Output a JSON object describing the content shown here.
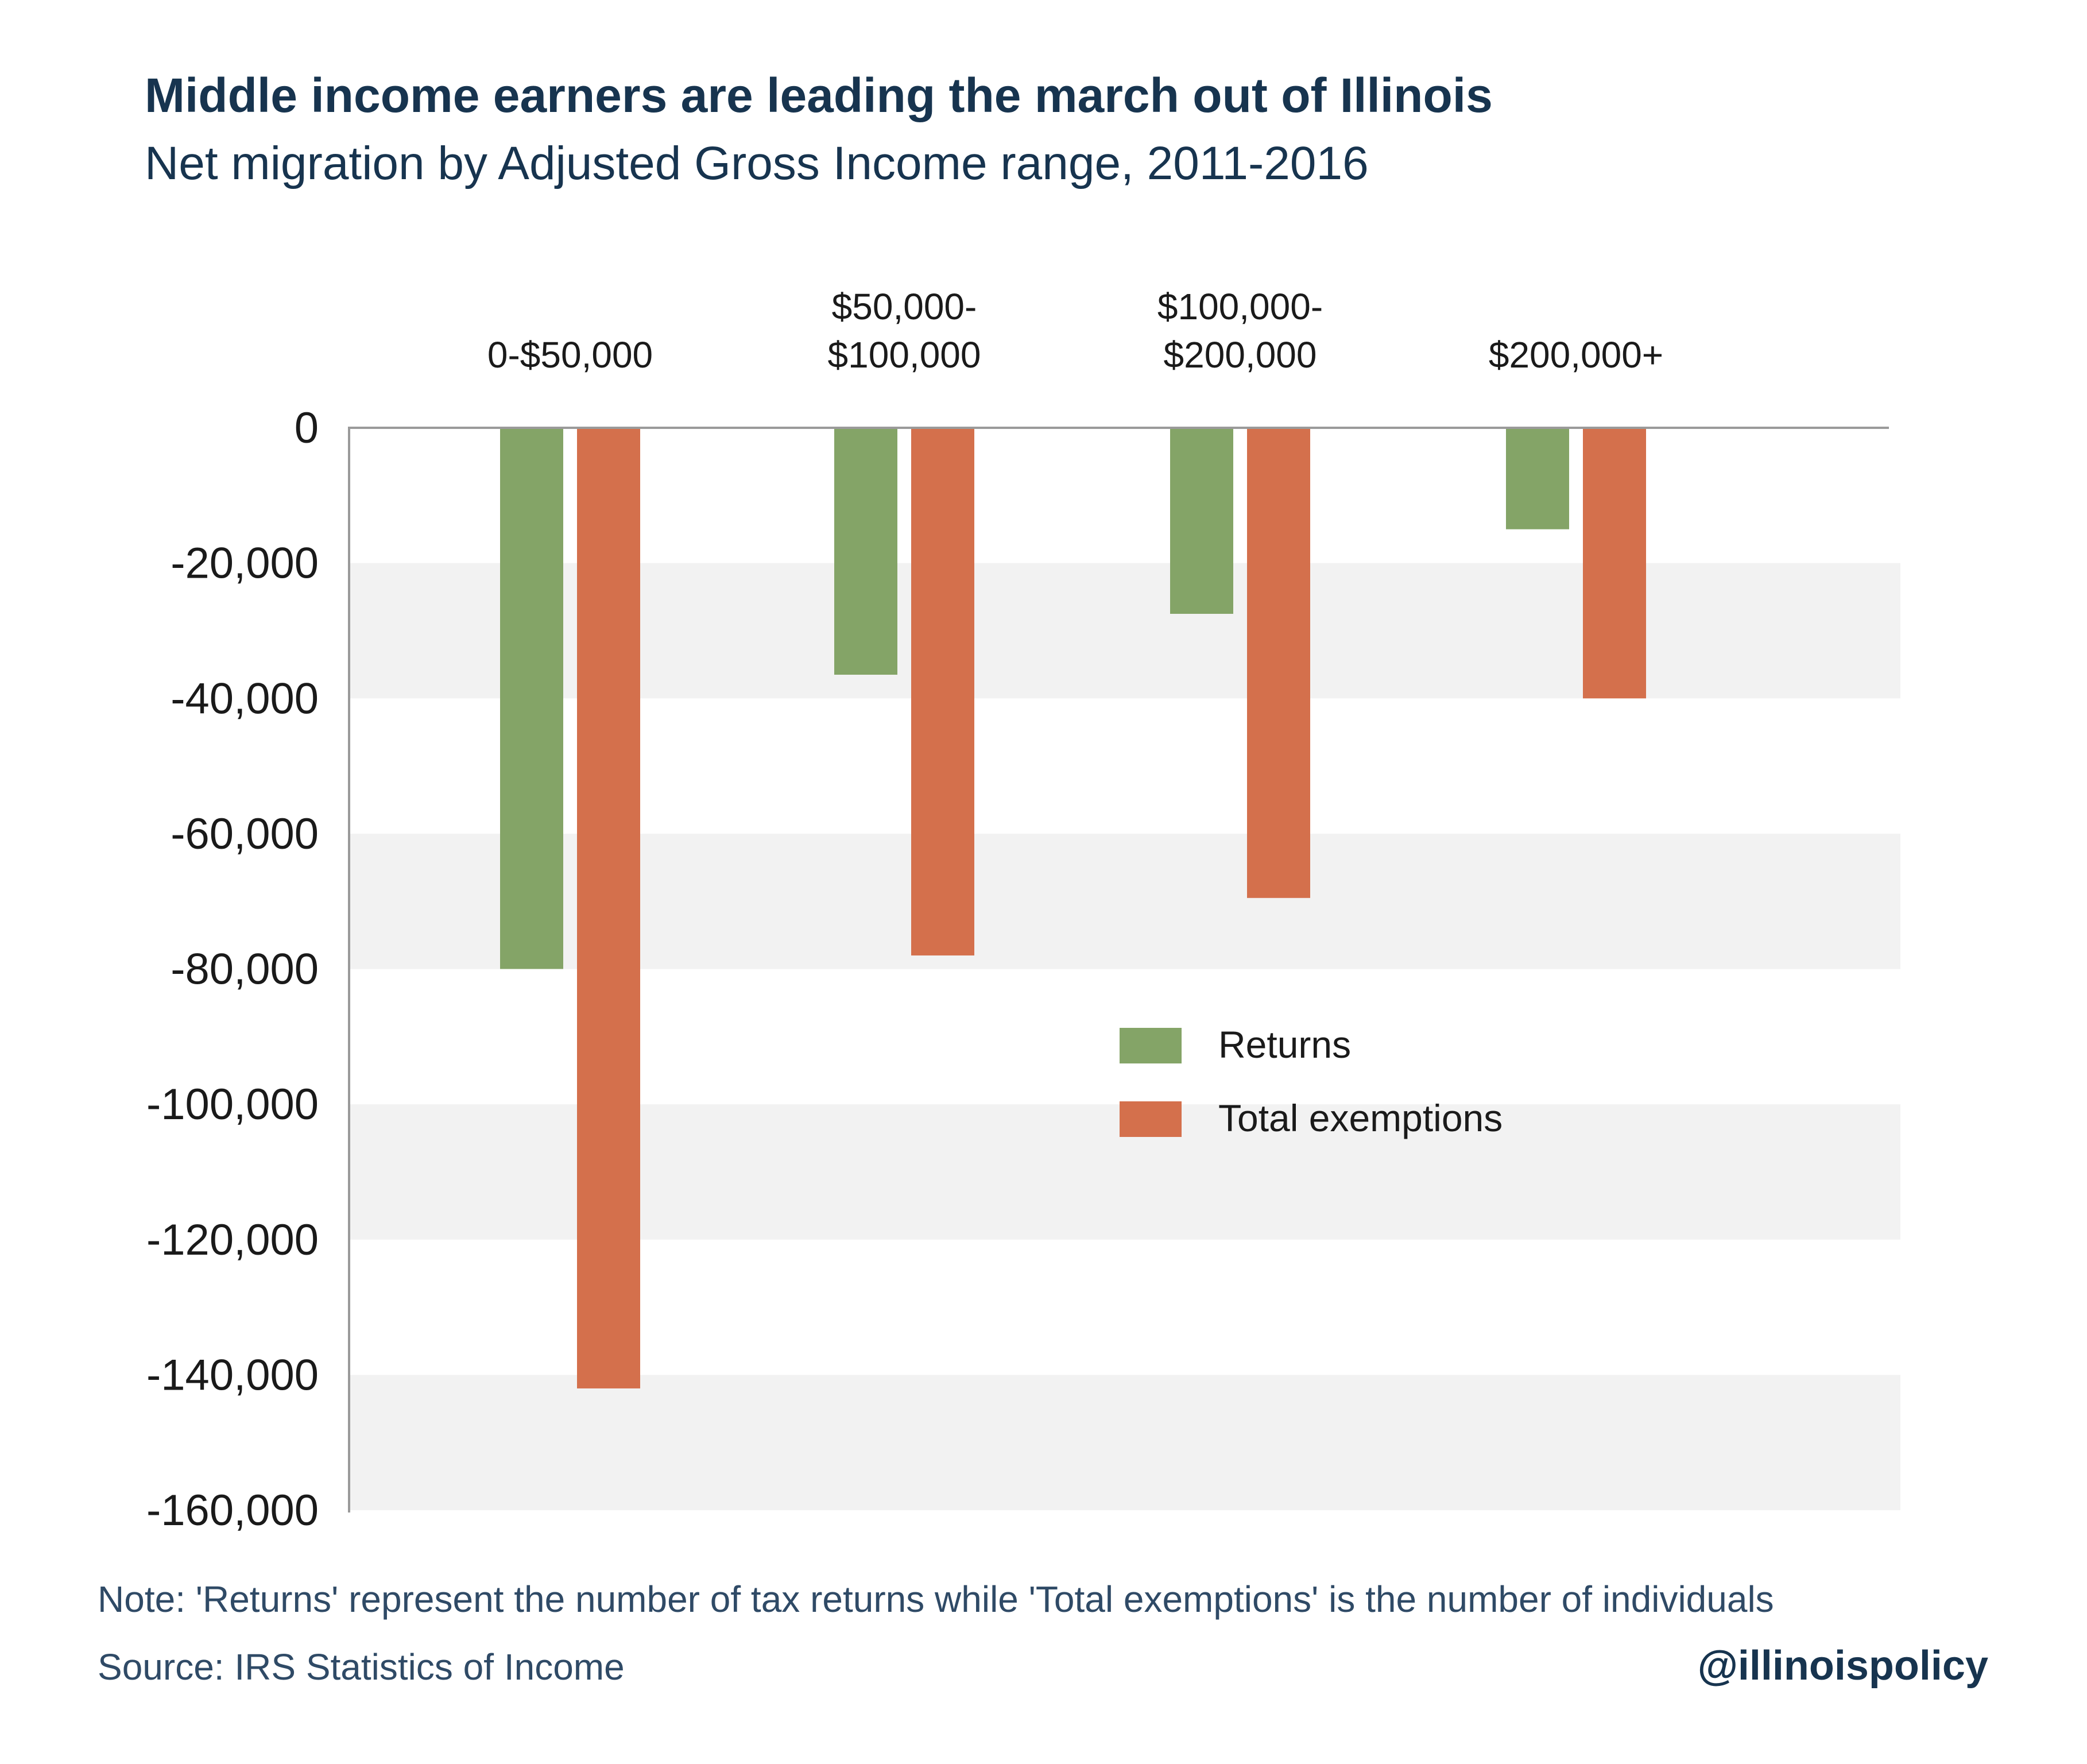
{
  "header": {
    "title": "Middle income earners are leading the march out of Illinois",
    "subtitle": "Net migration by Adjusted Gross Income range, 2011-2016"
  },
  "footer": {
    "note": "Note: 'Returns' represent the number of tax returns while 'Total exemptions' is the number of individuals",
    "source": "Source: IRS Statistics of Income",
    "handle": "@illinoispolicy"
  },
  "chart_data": {
    "type": "bar",
    "categories": [
      [
        "0-$50,000"
      ],
      [
        "$50,000-",
        "$100,000"
      ],
      [
        "$100,000-",
        "$200,000"
      ],
      [
        "$200,000+"
      ]
    ],
    "series": [
      {
        "name": "Returns",
        "color": "#84a467",
        "values": [
          -80000,
          -36500,
          -27500,
          -15000
        ]
      },
      {
        "name": "Total exemptions",
        "color": "#d4704c",
        "values": [
          -142000,
          -78000,
          -69500,
          -40000
        ]
      }
    ],
    "ylim": [
      -160000,
      0
    ],
    "yticks": [
      0,
      -20000,
      -40000,
      -60000,
      -80000,
      -100000,
      -120000,
      -140000,
      -160000
    ],
    "ytick_labels": [
      "0",
      "-20,000",
      "-40,000",
      "-60,000",
      "-80,000",
      "-100,000",
      "-120,000",
      "-140,000",
      "-160,000"
    ],
    "grid": "alternating bands",
    "band_color": "#f2f2f2",
    "legend_position": "center-right",
    "xlabel": "",
    "ylabel": ""
  }
}
